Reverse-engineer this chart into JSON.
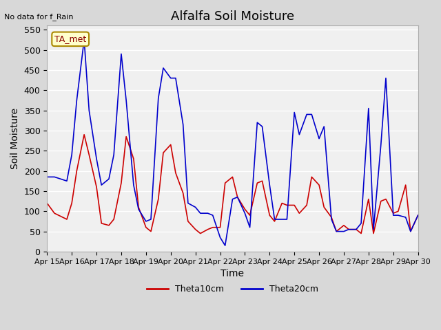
{
  "title": "Alfalfa Soil Moisture",
  "xlabel": "Time",
  "ylabel": "Soil Moisture",
  "top_left_text": "No data for f_Rain",
  "annotation_box": "TA_met",
  "ylim": [
    0,
    560
  ],
  "yticks": [
    0,
    50,
    100,
    150,
    200,
    250,
    300,
    350,
    400,
    450,
    500,
    550
  ],
  "background_color": "#e8e8e8",
  "plot_bg_color": "#f0f0f0",
  "line1_color": "#cc0000",
  "line2_color": "#0000cc",
  "legend1": "Theta10cm",
  "legend2": "Theta20cm",
  "x_labels": [
    "Apr 15",
    "Apr 16",
    "Apr 17",
    "Apr 18",
    "Apr 19",
    "Apr 20",
    "Apr 21",
    "Apr 22",
    "Apr 23",
    "Apr 24",
    "Apr 25",
    "Apr 26",
    "Apr 27",
    "Apr 28",
    "Apr 29",
    "Apr 30"
  ],
  "theta10_x": [
    0,
    0.3,
    0.8,
    1.0,
    1.2,
    1.5,
    1.7,
    2.0,
    2.2,
    2.5,
    2.7,
    3.0,
    3.2,
    3.5,
    3.7,
    4.0,
    4.2,
    4.5,
    4.7,
    5.0,
    5.2,
    5.5,
    5.7,
    6.0,
    6.2,
    6.5,
    6.7,
    7.0,
    7.2,
    7.5,
    7.7,
    8.0,
    8.2,
    8.5,
    8.7,
    9.0,
    9.2,
    9.5,
    9.7,
    10.0,
    10.2,
    10.5,
    10.7,
    11.0,
    11.2,
    11.5,
    11.7,
    12.0,
    12.2,
    12.5,
    12.7,
    13.0,
    13.2,
    13.5,
    13.7,
    14.0,
    14.2,
    14.5,
    14.7,
    15.0
  ],
  "theta10_y": [
    120,
    95,
    80,
    120,
    200,
    290,
    240,
    160,
    70,
    65,
    80,
    170,
    285,
    230,
    110,
    60,
    50,
    130,
    245,
    265,
    195,
    145,
    75,
    55,
    45,
    55,
    60,
    60,
    170,
    185,
    135,
    105,
    90,
    170,
    175,
    90,
    75,
    120,
    115,
    115,
    95,
    115,
    185,
    165,
    110,
    85,
    50,
    65,
    55,
    55,
    45,
    130,
    45,
    125,
    130,
    95,
    100,
    165,
    50,
    90
  ],
  "theta20_x": [
    0,
    0.3,
    0.8,
    1.0,
    1.2,
    1.5,
    1.7,
    2.0,
    2.2,
    2.5,
    2.7,
    3.0,
    3.2,
    3.5,
    3.7,
    4.0,
    4.2,
    4.5,
    4.7,
    5.0,
    5.2,
    5.5,
    5.7,
    6.0,
    6.2,
    6.5,
    6.7,
    7.0,
    7.2,
    7.5,
    7.7,
    8.0,
    8.2,
    8.5,
    8.7,
    9.0,
    9.2,
    9.5,
    9.7,
    10.0,
    10.2,
    10.5,
    10.7,
    11.0,
    11.2,
    11.5,
    11.7,
    12.0,
    12.2,
    12.5,
    12.7,
    13.0,
    13.2,
    13.5,
    13.7,
    14.0,
    14.2,
    14.5,
    14.7,
    15.0
  ],
  "theta20_y": [
    185,
    185,
    175,
    240,
    375,
    525,
    350,
    230,
    165,
    180,
    240,
    490,
    375,
    165,
    105,
    75,
    80,
    380,
    455,
    430,
    430,
    315,
    120,
    110,
    95,
    95,
    90,
    35,
    15,
    130,
    135,
    95,
    60,
    320,
    310,
    165,
    80,
    80,
    80,
    345,
    290,
    340,
    340,
    280,
    310,
    80,
    50,
    50,
    55,
    55,
    70,
    355,
    55,
    265,
    430,
    90,
    90,
    85,
    50,
    90
  ]
}
